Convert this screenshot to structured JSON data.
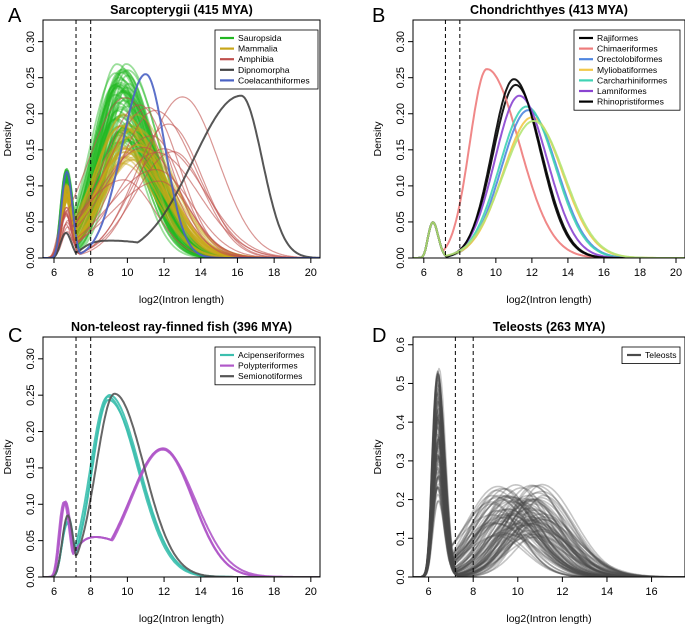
{
  "figure": {
    "xlabel": "log2(Intron length)",
    "ylabel": "Density",
    "reference_lines": [
      7.2,
      8.0
    ]
  },
  "chart_data": [
    {
      "panel": "A",
      "type": "line",
      "title": "Sarcopterygii (415 MYA)",
      "xlabel": "log2(Intron length)",
      "ylabel": "Density",
      "xlim": [
        5.4,
        20.5
      ],
      "ylim": [
        0,
        0.33
      ],
      "xticks": [
        6,
        8,
        10,
        12,
        14,
        16,
        18,
        20
      ],
      "yticks": [
        0.0,
        0.05,
        0.1,
        0.15,
        0.2,
        0.25,
        0.3
      ],
      "vlines": [
        7.2,
        8.0
      ],
      "legend": "top-right",
      "series": [
        {
          "name": "Sauropsida",
          "color": "#22b722",
          "count": 60,
          "spike": {
            "x": 6.7,
            "h": [
              0.085,
              0.125
            ]
          },
          "peak": {
            "x": [
              9.3,
              10.1
            ],
            "h": [
              0.16,
              0.27
            ],
            "sdL": [
              1.1,
              1.4
            ],
            "sdR": [
              1.4,
              1.9
            ]
          }
        },
        {
          "name": "Mammalia",
          "color": "#c8a618",
          "count": 30,
          "spike": {
            "x": 6.7,
            "h": [
              0.075,
              0.105
            ]
          },
          "peak": {
            "x": [
              9.6,
              10.6
            ],
            "h": [
              0.13,
              0.2
            ],
            "sdL": [
              1.4,
              1.8
            ],
            "sdR": [
              1.7,
              2.2
            ]
          }
        },
        {
          "name": "Amphibia",
          "color": "#c0504d",
          "count": 14,
          "spike": {
            "x": 6.7,
            "h": [
              0.03,
              0.08
            ]
          },
          "peak": {
            "x": [
              9.8,
              13.2
            ],
            "h": [
              0.1,
              0.23
            ],
            "sdL": [
              1.8,
              2.6
            ],
            "sdR": [
              1.6,
              2.4
            ]
          }
        },
        {
          "name": "Dipnomorpha",
          "color": "#444444",
          "count": 1,
          "spike": {
            "x": 6.65,
            "h": [
              0.035,
              0.035
            ]
          },
          "peak": {
            "x": [
              16.2,
              16.2
            ],
            "h": [
              0.225,
              0.225
            ],
            "sdL": [
              2.6,
              2.6
            ],
            "sdR": [
              1.15,
              1.15
            ]
          },
          "base": {
            "from": 7.5,
            "to": 12.0,
            "h": 0.025
          }
        },
        {
          "name": "Coelacanthiformes",
          "color": "#4a62c4",
          "count": 1,
          "spike": {
            "x": 6.7,
            "h": [
              0.12,
              0.12
            ]
          },
          "peak": {
            "x": [
              11.0,
              11.0
            ],
            "h": [
              0.255,
              0.255
            ],
            "sdL": [
              1.3,
              1.3
            ],
            "sdR": [
              1.05,
              1.05
            ]
          }
        }
      ]
    },
    {
      "panel": "B",
      "type": "line",
      "title": "Chondrichthyes (413 MYA)",
      "xlabel": "log2(Intron length)",
      "ylabel": "Density",
      "xlim": [
        5.4,
        20.5
      ],
      "ylim": [
        0,
        0.33
      ],
      "xticks": [
        6,
        8,
        10,
        12,
        14,
        16,
        18,
        20
      ],
      "yticks": [
        0.0,
        0.05,
        0.1,
        0.15,
        0.2,
        0.25,
        0.3
      ],
      "vlines": [
        7.2,
        8.0
      ],
      "legend": "top-right",
      "series": [
        {
          "name": "Rajiformes",
          "color": "#000000",
          "count": 1,
          "spike": {
            "x": 6.5,
            "h": [
              0.05,
              0.05
            ]
          },
          "peak": {
            "x": [
              11.1,
              11.1
            ],
            "h": [
              0.24,
              0.24
            ],
            "sdL": [
              1.25,
              1.25
            ],
            "sdR": [
              1.45,
              1.45
            ]
          }
        },
        {
          "name": "Chimaeriformes",
          "color": "#ee7b7b",
          "count": 1,
          "spike": {
            "x": 6.5,
            "h": [
              0.05,
              0.05
            ]
          },
          "peak": {
            "x": [
              9.5,
              9.5
            ],
            "h": [
              0.262,
              0.262
            ],
            "sdL": [
              0.95,
              0.95
            ],
            "sdR": [
              1.8,
              1.8
            ]
          }
        },
        {
          "name": "Orectolobiformes",
          "color": "#4f86e0",
          "count": 1,
          "spike": {
            "x": 6.5,
            "h": [
              0.05,
              0.05
            ]
          },
          "peak": {
            "x": [
              11.8,
              11.8
            ],
            "h": [
              0.205,
              0.205
            ],
            "sdL": [
              1.5,
              1.5
            ],
            "sdR": [
              1.6,
              1.6
            ]
          }
        },
        {
          "name": "Myliobatiformes",
          "color": "#f2c84a",
          "count": 1,
          "spike": {
            "x": 6.5,
            "h": [
              0.05,
              0.05
            ]
          },
          "peak": {
            "x": [
              12.0,
              12.0
            ],
            "h": [
              0.195,
              0.195
            ],
            "sdL": [
              1.6,
              1.6
            ],
            "sdR": [
              1.7,
              1.7
            ]
          }
        },
        {
          "name": "Carcharhiniformes",
          "color": "#3fd3b4",
          "count": 1,
          "spike": {
            "x": 6.5,
            "h": [
              0.05,
              0.05
            ]
          },
          "peak": {
            "x": [
              11.7,
              11.7
            ],
            "h": [
              0.21,
              0.21
            ],
            "sdL": [
              1.5,
              1.5
            ],
            "sdR": [
              1.6,
              1.6
            ]
          }
        },
        {
          "name": "Lamniformes",
          "color": "#8a44d1",
          "count": 1,
          "spike": {
            "x": 6.5,
            "h": [
              0.05,
              0.05
            ]
          },
          "peak": {
            "x": [
              11.3,
              11.3
            ],
            "h": [
              0.225,
              0.225
            ],
            "sdL": [
              1.35,
              1.35
            ],
            "sdR": [
              1.55,
              1.55
            ]
          }
        },
        {
          "name": "Rhinopristiformes",
          "color": "#000000",
          "count": 1,
          "spike": {
            "x": 6.5,
            "h": [
              0.05,
              0.05
            ]
          },
          "peak": {
            "x": [
              11.0,
              11.0
            ],
            "h": [
              0.248,
              0.248
            ],
            "sdL": [
              1.2,
              1.2
            ],
            "sdR": [
              1.45,
              1.45
            ]
          }
        },
        {
          "name": "",
          "color": "#b4e674",
          "count": 1,
          "legend": false,
          "spike": {
            "x": 6.5,
            "h": [
              0.05,
              0.05
            ]
          },
          "peak": {
            "x": [
              12.1,
              12.1
            ],
            "h": [
              0.19,
              0.19
            ],
            "sdL": [
              1.7,
              1.7
            ],
            "sdR": [
              1.7,
              1.7
            ]
          }
        }
      ]
    },
    {
      "panel": "C",
      "type": "line",
      "title": "Non-teleost ray-finned fish (396 MYA)",
      "xlabel": "log2(Intron length)",
      "ylabel": "Density",
      "xlim": [
        5.4,
        20.5
      ],
      "ylim": [
        0,
        0.33
      ],
      "xticks": [
        6,
        8,
        10,
        12,
        14,
        16,
        18,
        20
      ],
      "yticks": [
        0.0,
        0.05,
        0.1,
        0.15,
        0.2,
        0.25,
        0.3
      ],
      "vlines": [
        7.2,
        8.0
      ],
      "legend": "top-right",
      "series": [
        {
          "name": "Acipenseriformes",
          "color": "#3cbfae",
          "count": 3,
          "spike": {
            "x": 6.75,
            "h": [
              0.07,
              0.085
            ]
          },
          "peak": {
            "x": [
              8.85,
              9.05
            ],
            "h": [
              0.24,
              0.252
            ],
            "sdL": [
              0.85,
              0.95
            ],
            "sdR": [
              1.6,
              1.8
            ]
          }
        },
        {
          "name": "Polypteriformes",
          "color": "#b058c9",
          "count": 3,
          "spike": {
            "x": 6.6,
            "h": [
              0.1,
              0.11
            ]
          },
          "peak": {
            "x": [
              11.85,
              12.05
            ],
            "h": [
              0.175,
              0.18
            ],
            "sdL": [
              1.6,
              1.8
            ],
            "sdR": [
              1.6,
              1.8
            ]
          },
          "base": {
            "from": 7.0,
            "to": 10.5,
            "h": 0.06
          }
        },
        {
          "name": "Semionotiformes",
          "color": "#555555",
          "count": 1,
          "spike": {
            "x": 6.75,
            "h": [
              0.085,
              0.085
            ]
          },
          "peak": {
            "x": [
              9.3,
              9.3
            ],
            "h": [
              0.252,
              0.252
            ],
            "sdL": [
              1.0,
              1.0
            ],
            "sdR": [
              1.6,
              1.6
            ]
          }
        }
      ]
    },
    {
      "panel": "D",
      "type": "line",
      "title": "Teleosts (263 MYA)",
      "xlabel": "log2(Intron length)",
      "ylabel": "Density",
      "xlim": [
        5.3,
        17.5
      ],
      "ylim": [
        0,
        0.62
      ],
      "xticks": [
        6,
        8,
        10,
        12,
        14,
        16
      ],
      "yticks": [
        0.0,
        0.1,
        0.2,
        0.3,
        0.4,
        0.5,
        0.6
      ],
      "vlines": [
        7.2,
        8.0
      ],
      "legend": "top-right",
      "series": [
        {
          "name": "Teleosts",
          "color": "#4a4a4a",
          "count": 90,
          "spike": {
            "x": 6.4,
            "h": [
              0.2,
              0.55
            ]
          },
          "peak": {
            "x": [
              8.8,
              11.2
            ],
            "h": [
              0.1,
              0.24
            ],
            "sdL": [
              1.0,
              1.6
            ],
            "sdR": [
              1.2,
              1.8
            ]
          }
        }
      ]
    }
  ]
}
